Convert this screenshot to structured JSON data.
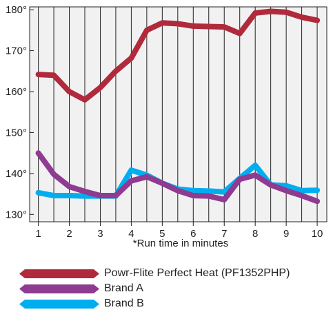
{
  "chart_data": {
    "type": "line",
    "xlabel": "*Run time in minutes",
    "ylabel": "",
    "x": [
      1,
      1.5,
      2,
      2.5,
      3,
      3.5,
      4,
      4.5,
      5,
      5.5,
      6,
      6.5,
      7,
      7.5,
      8,
      8.5,
      9,
      9.5,
      10
    ],
    "xlim": [
      0.72,
      10.31
    ],
    "ylim": [
      128.2,
      180.7
    ],
    "x_ticks": [
      1,
      2,
      3,
      4,
      5,
      6,
      7,
      8,
      9,
      10
    ],
    "x_tick_labels": [
      "1",
      "2",
      "3",
      "4",
      "5",
      "6",
      "7",
      "8",
      "9",
      "10"
    ],
    "y_ticks": [
      130,
      140,
      150,
      160,
      170,
      180
    ],
    "y_tick_labels": [
      "130°",
      "140°",
      "150°",
      "160°",
      "170°",
      "180°"
    ],
    "grid": true,
    "legend": "bottom",
    "series": [
      {
        "name": "Powr-Flite Perfect Heat (PF1352PHP)",
        "color": "#b02a3c",
        "values": [
          164.2,
          164.0,
          160.0,
          158.0,
          161.0,
          165.0,
          168.2,
          175.0,
          176.8,
          176.6,
          176.0,
          175.9,
          175.8,
          174.2,
          179.2,
          179.6,
          179.4,
          178.2,
          177.4
        ]
      },
      {
        "name": "Brand A",
        "color": "#8e3b91",
        "values": [
          145.0,
          139.8,
          136.8,
          135.6,
          134.6,
          134.6,
          138.2,
          139.2,
          137.6,
          135.8,
          134.6,
          134.5,
          133.6,
          138.6,
          139.6,
          137.2,
          135.8,
          134.6,
          133.2
        ]
      },
      {
        "name": "Brand B",
        "color": "#00aeef",
        "values": [
          135.3,
          134.6,
          134.6,
          134.5,
          134.5,
          134.5,
          140.8,
          139.6,
          137.6,
          136.2,
          135.8,
          135.7,
          135.5,
          138.8,
          142.0,
          137.2,
          137.0,
          135.8,
          135.9
        ]
      }
    ]
  }
}
